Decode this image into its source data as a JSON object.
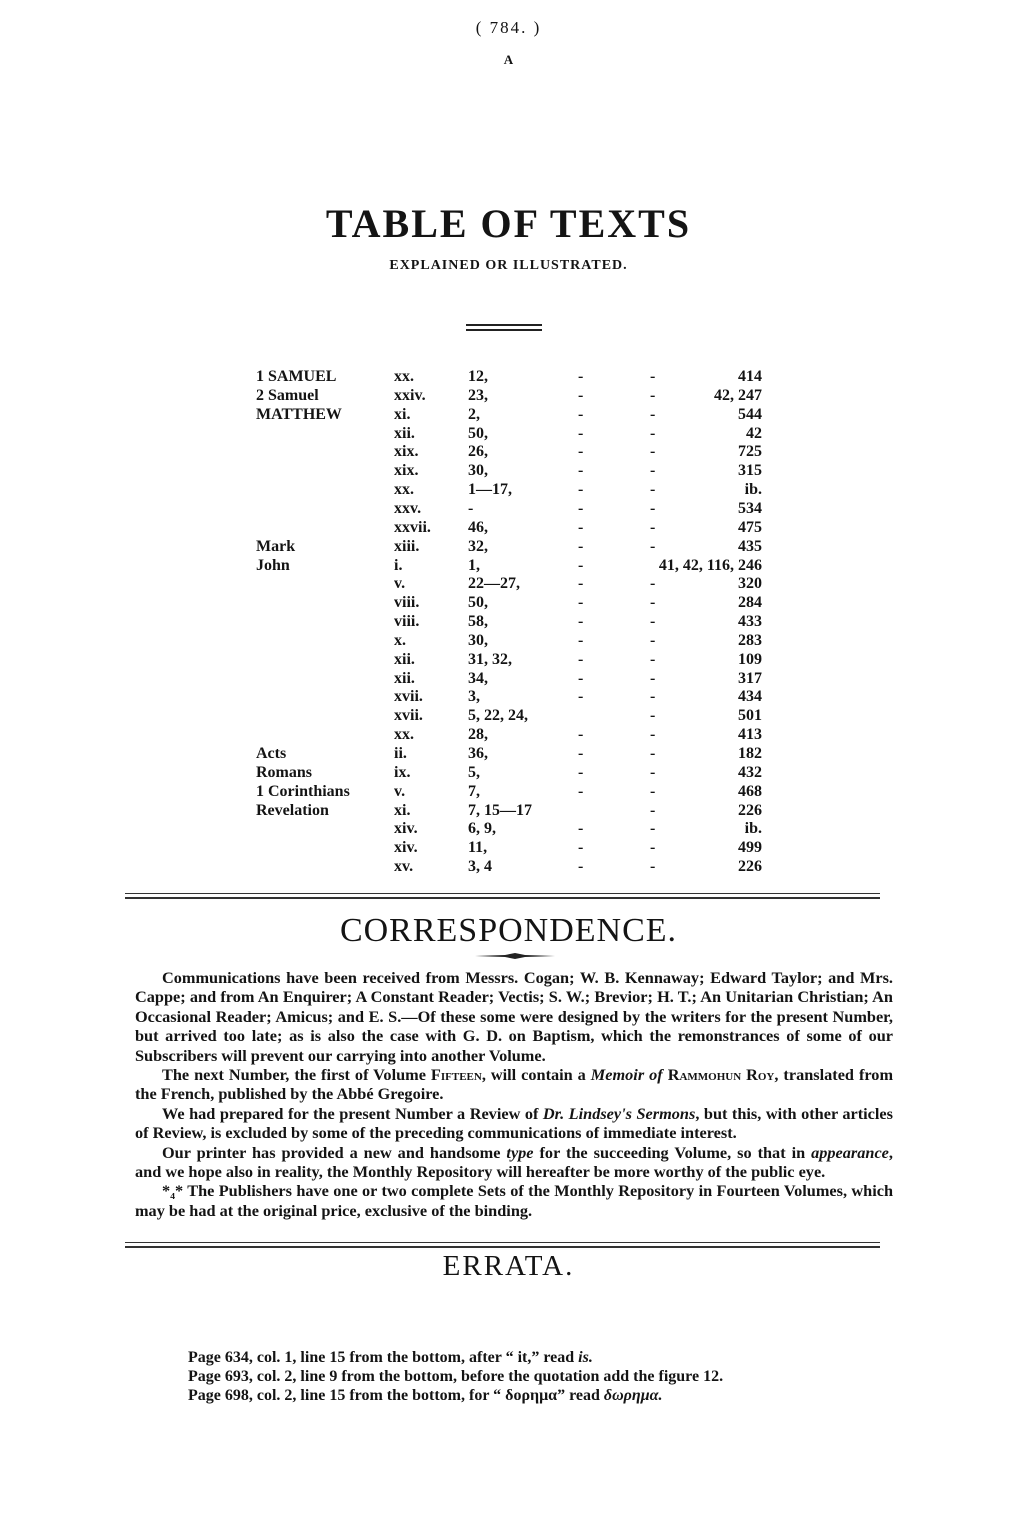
{
  "page_number": "( 784. )",
  "header_letter": "A",
  "title": "TABLE OF TEXTS",
  "subtitle": "EXPLAINED OR ILLUSTRATED.",
  "table": {
    "rows": [
      [
        "1 SAMUEL",
        "xx.",
        "12,",
        "-",
        "-",
        "414"
      ],
      [
        "2 Samuel",
        "xxiv.",
        "23,",
        "-",
        "-",
        "42, 247"
      ],
      [
        "MATTHEW",
        "xi.",
        "2,",
        "-",
        "-",
        "544"
      ],
      [
        "",
        "xii.",
        "50,",
        "-",
        "-",
        "42"
      ],
      [
        "",
        "xix.",
        "26,",
        "-",
        "-",
        "725"
      ],
      [
        "",
        "xix.",
        "30,",
        "-",
        "-",
        "315"
      ],
      [
        "",
        "xx.",
        "1—17,",
        "-",
        "-",
        "ib."
      ],
      [
        "",
        "xxv.",
        "-",
        "-",
        "-",
        "534"
      ],
      [
        "",
        "xxvii.",
        "46,",
        "-",
        "-",
        "475"
      ],
      [
        "Mark",
        "xiii.",
        "32,",
        "-",
        "-",
        "435"
      ],
      [
        "John",
        "i.",
        "1,",
        "-",
        "",
        "41, 42, 116, 246"
      ],
      [
        "",
        "v.",
        "22—27,",
        "-",
        "-",
        "320"
      ],
      [
        "",
        "viii.",
        "50,",
        "-",
        "-",
        "284"
      ],
      [
        "",
        "viii.",
        "58,",
        "-",
        "-",
        "433"
      ],
      [
        "",
        "x.",
        "30,",
        "-",
        "-",
        "283"
      ],
      [
        "",
        "xii.",
        "31, 32,",
        "-",
        "-",
        "109"
      ],
      [
        "",
        "xii.",
        "34,",
        "-",
        "-",
        "317"
      ],
      [
        "",
        "xvii.",
        "3,",
        "-",
        "-",
        "434"
      ],
      [
        "",
        "xvii.",
        "5, 22, 24,",
        "",
        "-",
        "501"
      ],
      [
        "",
        "xx.",
        "28,",
        "-",
        "-",
        "413"
      ],
      [
        "Acts",
        "ii.",
        "36,",
        "-",
        "-",
        "182"
      ],
      [
        "Romans",
        "ix.",
        "5,",
        "-",
        "-",
        "432"
      ],
      [
        "1 Corinthians",
        "v.",
        "7,",
        "-",
        "-",
        "468"
      ],
      [
        "Revelation",
        "xi.",
        "7, 15—17",
        "",
        "-",
        "226"
      ],
      [
        "",
        "xiv.",
        "6, 9,",
        "-",
        "-",
        "ib."
      ],
      [
        "",
        "xiv.",
        "11,",
        "-",
        "-",
        "499"
      ],
      [
        "",
        "xv.",
        "3, 4",
        "-",
        "-",
        "226"
      ]
    ]
  },
  "correspondence": {
    "title": "CORRESPONDENCE.",
    "p1": "Communications have been received from Messrs. Cogan; W. B. Kennaway; Edward Taylor; and Mrs. Cappe; and from An Enquirer; A Constant Reader; Vectis; S. W.; Brevior; H. T.; An Unitarian Christian; An Occasional Reader; Amicus; and E. S.—Of these some were designed by the writers for the present Number, but arrived too late; as is also the case with G. D. on Baptism, which the remonstrances of some of our Subscribers will prevent our carrying into another Volume.",
    "p2": {
      "a": "The next Number, the first of Volume ",
      "b": "Fifteen",
      "c": ", will contain a ",
      "d": "Memoir of",
      "e": " ",
      "f": "Rammohun Roy",
      "g": ", translated from the French, published by the Abbé Gregoire."
    },
    "p3": {
      "a": "We had prepared for the present Number a Review of ",
      "b": "Dr. Lindsey's Sermons",
      "c": ", but this, with other articles of Review, is excluded by some of the preceding communications of immediate interest."
    },
    "p4": {
      "a": "Our printer has provided a new and handsome ",
      "b": "type",
      "c": " for the succeeding Volume, so that in ",
      "d": "appearance",
      "e": ", and we hope also in reality, the Monthly Repository will hereafter be more worthy of the public eye."
    },
    "p5": "*₄* The Publishers have one or two complete Sets of the Monthly Repository in Fourteen Volumes, which may be had at the original price, exclusive of the binding."
  },
  "errata": {
    "title": "ERRATA.",
    "lines": [
      {
        "a": "Page 634, col. 1, line 15 from the bottom, after “ it,” read ",
        "b": "is."
      },
      {
        "a": "Page 693, col. 2, line 9 from the bottom, before the quotation add the figure 12.",
        "b": ""
      },
      {
        "a": "Page 698, col. 2, line 15 from the bottom, for “ δορημα” read ",
        "b": "δωρημα."
      }
    ]
  }
}
